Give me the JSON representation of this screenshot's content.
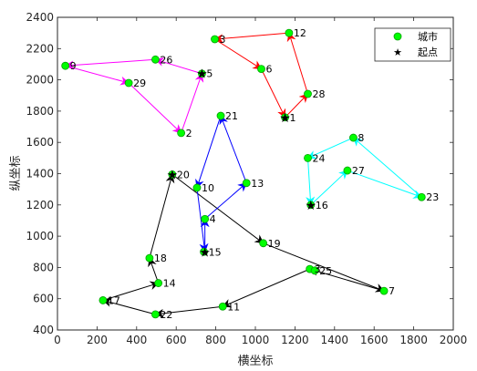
{
  "chart_data": {
    "type": "scatter",
    "title": "",
    "xlabel": "横坐标",
    "ylabel": "纵坐标",
    "xlim": [
      0,
      2000
    ],
    "ylim": [
      400,
      2400
    ],
    "xticks": [
      0,
      200,
      400,
      600,
      800,
      1000,
      1200,
      1400,
      1600,
      1800,
      2000
    ],
    "yticks": [
      400,
      600,
      800,
      1000,
      1200,
      1400,
      1600,
      1800,
      2000,
      2200,
      2400
    ],
    "grid": false,
    "legend_position": "top-right",
    "legend": [
      {
        "label": "城市",
        "marker": "circle",
        "color": "#00ff00"
      },
      {
        "label": "起点",
        "marker": "star",
        "color": "#000000"
      }
    ],
    "cities": [
      {
        "id": "1",
        "x": 1150,
        "y": 1760
      },
      {
        "id": "2",
        "x": 625,
        "y": 1660
      },
      {
        "id": "3",
        "x": 1275,
        "y": 790
      },
      {
        "id": "4",
        "x": 745,
        "y": 1110
      },
      {
        "id": "5",
        "x": 730,
        "y": 2040
      },
      {
        "id": "6",
        "x": 1030,
        "y": 2070
      },
      {
        "id": "7",
        "x": 1650,
        "y": 650
      },
      {
        "id": "8",
        "x": 1495,
        "y": 1630
      },
      {
        "id": "10",
        "x": 705,
        "y": 1310
      },
      {
        "id": "11",
        "x": 835,
        "y": 550
      },
      {
        "id": "12",
        "x": 1170,
        "y": 2300
      },
      {
        "id": "13",
        "x": 955,
        "y": 1340
      },
      {
        "id": "14",
        "x": 510,
        "y": 700
      },
      {
        "id": "15",
        "x": 740,
        "y": 900
      },
      {
        "id": "16",
        "x": 1280,
        "y": 1200
      },
      {
        "id": "17",
        "x": 230,
        "y": 590
      },
      {
        "id": "18",
        "x": 465,
        "y": 860
      },
      {
        "id": "19",
        "x": 1040,
        "y": 955
      },
      {
        "id": "20",
        "x": 580,
        "y": 1395
      },
      {
        "id": "21",
        "x": 825,
        "y": 1770
      },
      {
        "id": "22",
        "x": 495,
        "y": 500
      },
      {
        "id": "23",
        "x": 1840,
        "y": 1250
      },
      {
        "id": "24",
        "x": 1265,
        "y": 1500
      },
      {
        "id": "25",
        "x": 1300,
        "y": 780
      },
      {
        "id": "26",
        "x": 495,
        "y": 2130
      },
      {
        "id": "27",
        "x": 1465,
        "y": 1420
      },
      {
        "id": "28",
        "x": 1265,
        "y": 1910
      },
      {
        "id": "29",
        "x": 360,
        "y": 1980
      },
      {
        "id": "9",
        "x": 40,
        "y": 2090
      },
      {
        "id": "3b",
        "x": 795,
        "y": 2260
      }
    ],
    "start_points": [
      {
        "x": 580,
        "y": 1395
      },
      {
        "x": 1150,
        "y": 1760
      },
      {
        "x": 1280,
        "y": 1200
      },
      {
        "x": 745,
        "y": 900
      },
      {
        "x": 730,
        "y": 2040
      }
    ],
    "routes": [
      {
        "color": "#000000",
        "path": [
          [
            580,
            1395
          ],
          [
            1040,
            955
          ],
          [
            1650,
            650
          ],
          [
            1275,
            790
          ],
          [
            835,
            550
          ],
          [
            495,
            500
          ],
          [
            230,
            590
          ],
          [
            510,
            700
          ],
          [
            465,
            860
          ],
          [
            580,
            1395
          ]
        ]
      },
      {
        "color": "#ff0000",
        "path": [
          [
            1150,
            1760
          ],
          [
            1265,
            1910
          ],
          [
            1170,
            2300
          ],
          [
            795,
            2260
          ],
          [
            1030,
            2070
          ],
          [
            1150,
            1760
          ]
        ]
      },
      {
        "color": "#00ffff",
        "path": [
          [
            1280,
            1200
          ],
          [
            1465,
            1420
          ],
          [
            1840,
            1250
          ],
          [
            1495,
            1630
          ],
          [
            1265,
            1500
          ],
          [
            1280,
            1200
          ]
        ]
      },
      {
        "color": "#0000ff",
        "path": [
          [
            745,
            900
          ],
          [
            745,
            1110
          ],
          [
            955,
            1340
          ],
          [
            825,
            1770
          ],
          [
            705,
            1310
          ],
          [
            745,
            900
          ]
        ]
      },
      {
        "color": "#ff00ff",
        "path": [
          [
            730,
            2040
          ],
          [
            495,
            2130
          ],
          [
            40,
            2090
          ],
          [
            360,
            1980
          ],
          [
            625,
            1660
          ],
          [
            730,
            2040
          ]
        ]
      }
    ]
  },
  "colors": {
    "city_fill": "#00ff00",
    "city_edge": "#00a000",
    "start": "#000000"
  }
}
